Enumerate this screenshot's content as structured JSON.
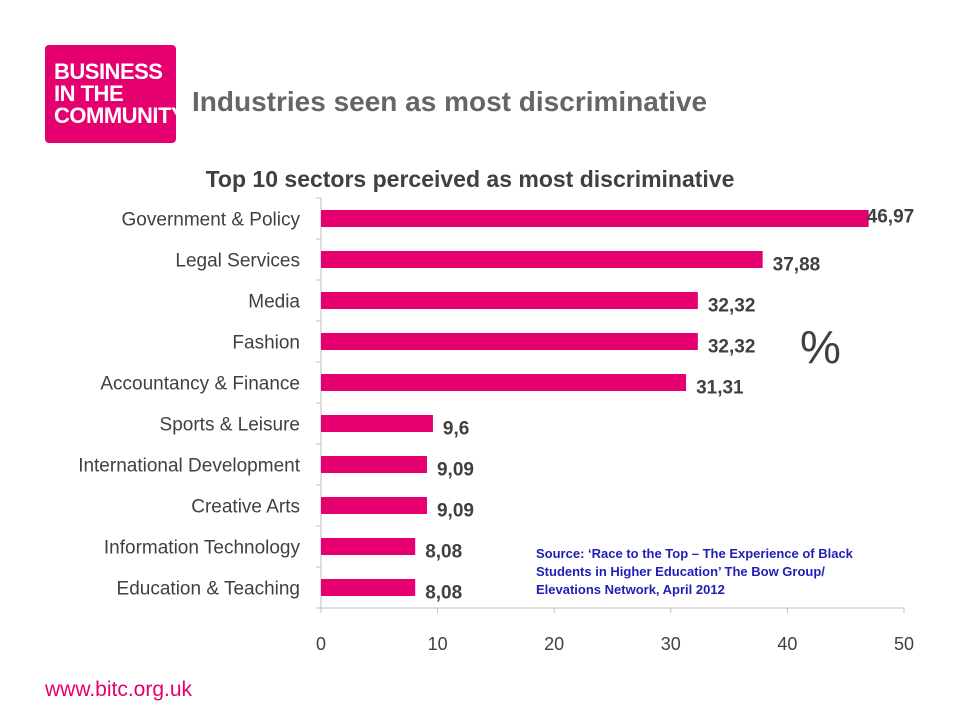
{
  "logo": {
    "lines": [
      "BUSINESS",
      "IN THE",
      "COMMUNITY"
    ],
    "color": "#e6006f"
  },
  "header": {
    "title": "Industries seen as most discriminative"
  },
  "chart_data": {
    "type": "bar",
    "orientation": "horizontal",
    "title": "Top 10 sectors perceived as most discriminative",
    "categories": [
      "Government & Policy",
      "Legal Services",
      "Media",
      "Fashion",
      "Accountancy & Finance",
      "Sports & Leisure",
      "International Development",
      "Creative Arts",
      "Information Technology",
      "Education & Teaching"
    ],
    "values": [
      46.97,
      37.88,
      32.32,
      32.32,
      31.31,
      9.6,
      9.09,
      9.09,
      8.08,
      8.08
    ],
    "value_labels": [
      "46,97",
      "37,88",
      "32,32",
      "32,32",
      "31,31",
      "9,6",
      "9,09",
      "9,09",
      "8,08",
      "8,08"
    ],
    "xlim": [
      0,
      50
    ],
    "xticks": [
      "0",
      "10",
      "20",
      "30",
      "40",
      "50"
    ],
    "bar_color": "#e6006f",
    "unit_label": "%",
    "grid": false
  },
  "source": {
    "lines": [
      "Source: ‘Race to the Top – The Experience of Black",
      "Students in Higher Education’ The Bow Group/",
      "Elevations Network, April 2012"
    ],
    "color": "#1f1fb4"
  },
  "footer": {
    "url": "www.bitc.org.uk"
  }
}
